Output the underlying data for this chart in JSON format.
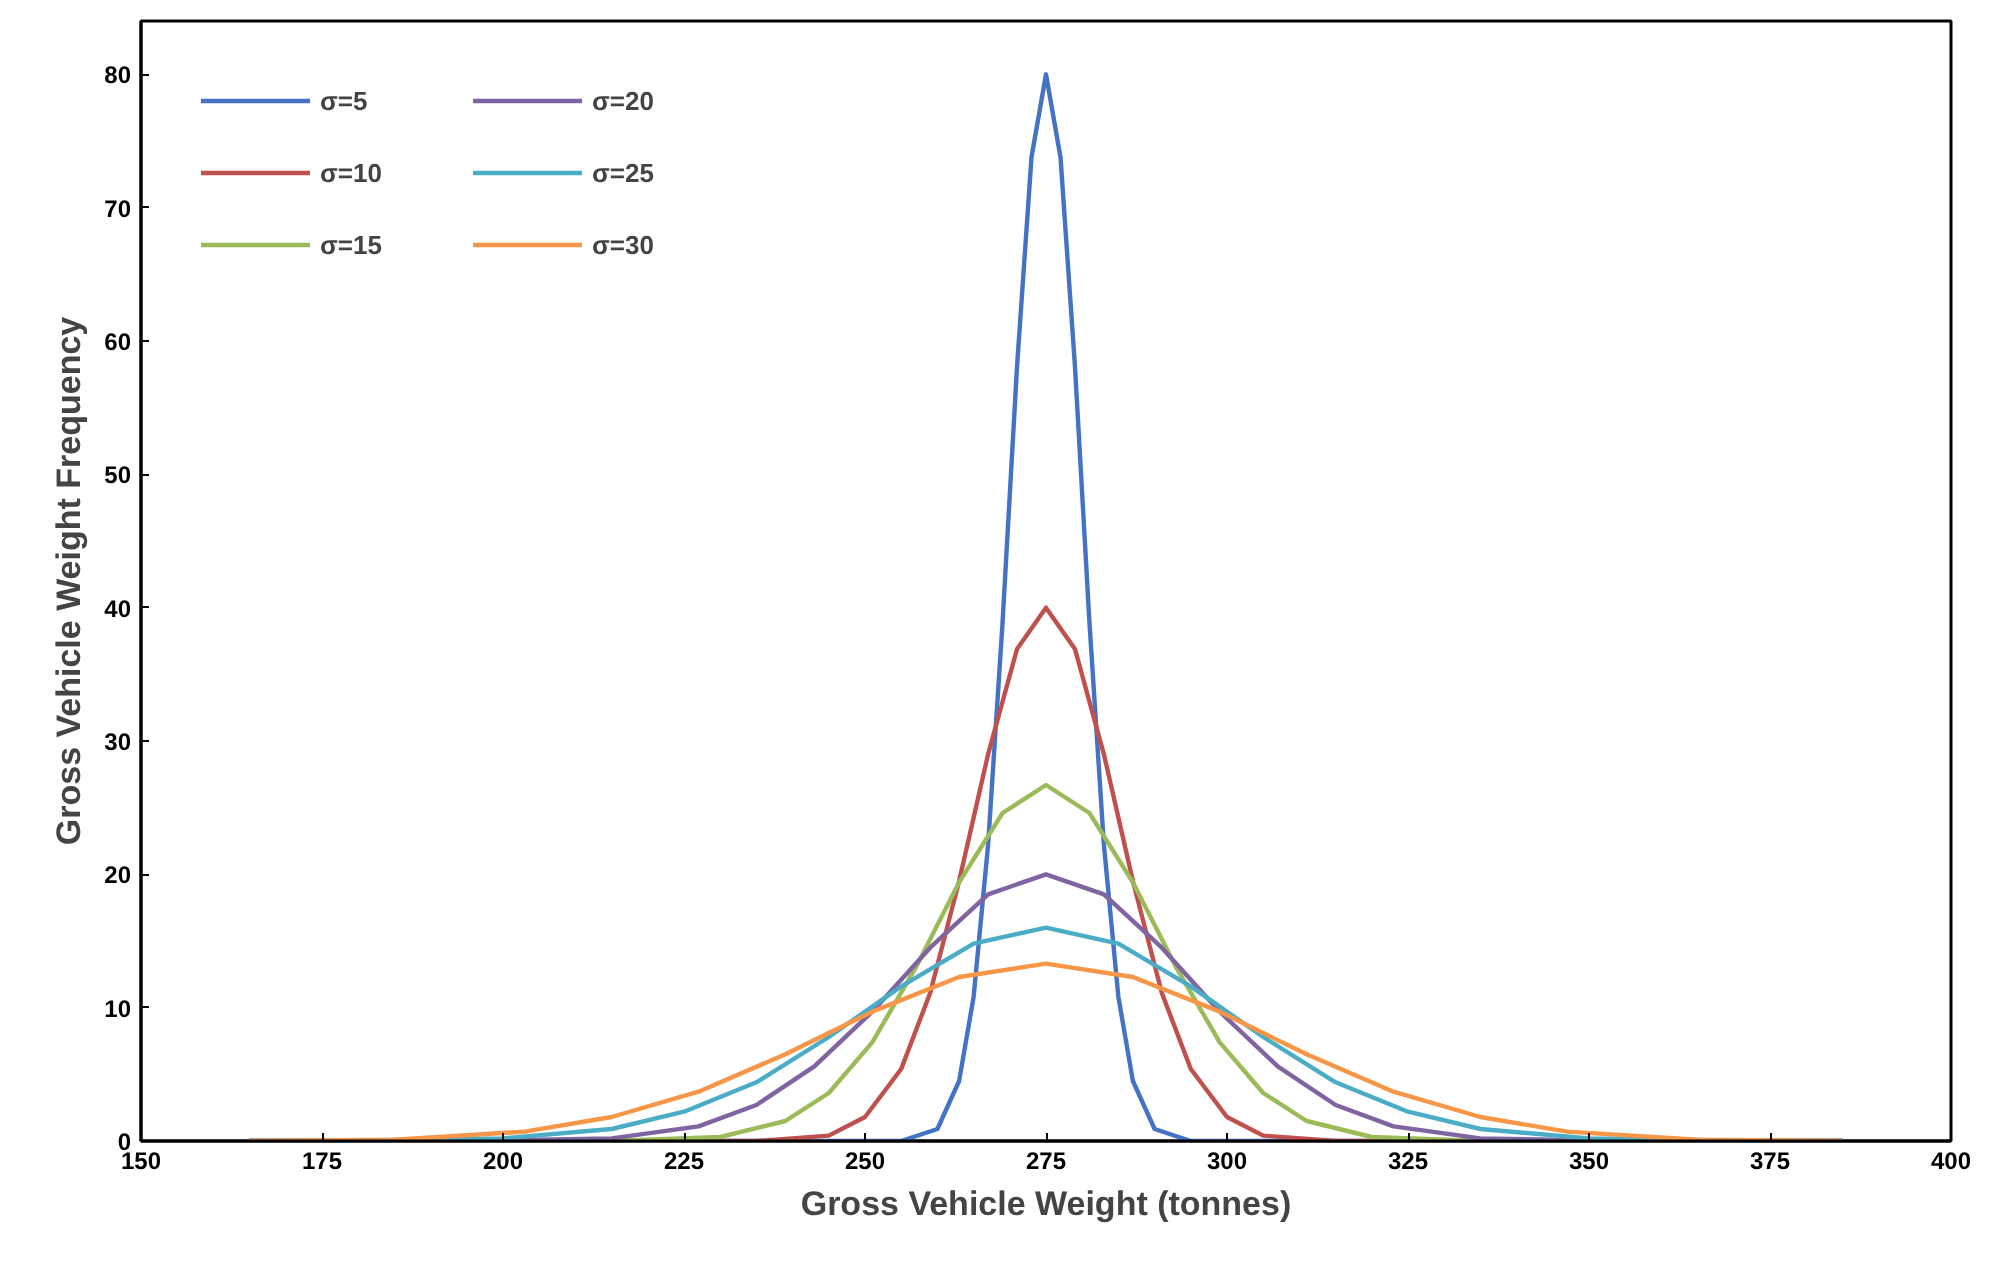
{
  "chart_data": {
    "type": "line",
    "xlabel": "Gross Vehicle Weight (tonnes)",
    "ylabel": "Gross Vehicle Weight Frequency",
    "xlim": [
      150,
      400
    ],
    "xticks": [
      150,
      175,
      200,
      225,
      250,
      275,
      300,
      325,
      350,
      375,
      400
    ],
    "ylim": [
      0,
      84
    ],
    "yticks": [
      0,
      10,
      20,
      30,
      40,
      50,
      60,
      70,
      80
    ],
    "grid": false,
    "legend": "top left",
    "marker": "none",
    "line_style": "solid",
    "series": [
      {
        "name": "σ=5",
        "color": "#4472c4",
        "x": [
          165,
          255,
          260,
          263,
          265,
          267,
          269,
          271,
          273,
          275,
          277,
          279,
          281,
          283,
          285,
          287,
          290,
          295,
          385
        ],
        "values": [
          0,
          0,
          0.9,
          4.5,
          10.8,
          22.2,
          38.9,
          58.1,
          73.8,
          80,
          73.8,
          58.1,
          38.9,
          22.2,
          10.8,
          4.5,
          0.9,
          0,
          0
        ]
      },
      {
        "name": "σ=10",
        "color": "#c0504d",
        "x": [
          165,
          235,
          245,
          250,
          255,
          259,
          263,
          267,
          271,
          275,
          279,
          283,
          287,
          291,
          295,
          300,
          305,
          315,
          385
        ],
        "values": [
          0,
          0,
          0.4,
          1.8,
          5.4,
          11.1,
          19.5,
          29.0,
          36.9,
          40,
          36.9,
          29.0,
          19.5,
          11.1,
          5.4,
          1.8,
          0.4,
          0,
          0
        ]
      },
      {
        "name": "σ=15",
        "color": "#9bbb59",
        "x": [
          165,
          215,
          230,
          239,
          245,
          251,
          257,
          263,
          269,
          275,
          281,
          287,
          293,
          299,
          305,
          311,
          320,
          335,
          385
        ],
        "values": [
          0,
          0,
          0.3,
          1.5,
          3.6,
          7.4,
          13.0,
          19.4,
          24.6,
          26.7,
          24.6,
          19.4,
          13.0,
          7.4,
          3.6,
          1.5,
          0.3,
          0,
          0
        ]
      },
      {
        "name": "σ=20",
        "color": "#8064a2",
        "x": [
          165,
          195,
          215,
          227,
          235,
          243,
          251,
          259,
          267,
          275,
          283,
          291,
          299,
          307,
          315,
          323,
          335,
          355,
          385
        ],
        "values": [
          0,
          0,
          0.2,
          1.1,
          2.7,
          5.6,
          9.7,
          14.5,
          18.5,
          20,
          18.5,
          14.5,
          9.7,
          5.6,
          2.7,
          1.1,
          0.2,
          0,
          0
        ]
      },
      {
        "name": "σ=25",
        "color": "#4bacc6",
        "x": [
          165,
          175,
          200,
          215,
          225,
          235,
          245,
          255,
          265,
          275,
          285,
          295,
          305,
          315,
          325,
          335,
          350,
          375,
          385
        ],
        "values": [
          0,
          0,
          0.2,
          0.9,
          2.2,
          4.4,
          7.8,
          11.6,
          14.8,
          16,
          14.8,
          11.6,
          7.8,
          4.4,
          2.2,
          0.9,
          0.2,
          0,
          0
        ]
      },
      {
        "name": "σ=30",
        "color": "#f79646",
        "x": [
          165,
          185,
          203,
          215,
          227,
          239,
          251,
          263,
          275,
          287,
          299,
          311,
          323,
          335,
          347,
          365,
          385
        ],
        "values": [
          0,
          0.1,
          0.7,
          1.8,
          3.7,
          6.5,
          9.7,
          12.3,
          13.3,
          12.3,
          9.7,
          6.5,
          3.7,
          1.8,
          0.7,
          0.1,
          0
        ]
      }
    ]
  }
}
